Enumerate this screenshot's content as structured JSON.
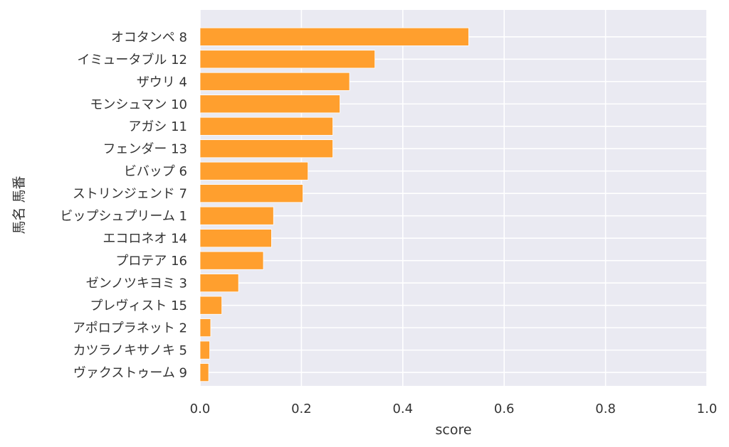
{
  "chart_data": {
    "type": "bar",
    "orientation": "horizontal",
    "title": "",
    "xlabel": "score",
    "ylabel": "馬名 馬番",
    "xlim": [
      0,
      1.0
    ],
    "xticks": [
      "0.0",
      "0.2",
      "0.4",
      "0.6",
      "0.8",
      "1.0"
    ],
    "grid": true,
    "legend": "none",
    "categories": [
      "オコタンペ 8",
      "イミュータブル 12",
      "ザウリ 4",
      "モンシュマン 10",
      "アガシ 11",
      "フェンダー 13",
      "ビバップ 6",
      "ストリンジェンド 7",
      "ビップシュプリーム 1",
      "エコロネオ 14",
      "プロテア 16",
      "ゼンノツキヨミ 3",
      "プレヴィスト 15",
      "アポロプラネット 2",
      "カツラノキサノキ 5",
      "ヴァクストゥーム 9"
    ],
    "values": [
      0.53,
      0.345,
      0.295,
      0.276,
      0.262,
      0.262,
      0.213,
      0.203,
      0.145,
      0.141,
      0.125,
      0.076,
      0.043,
      0.021,
      0.019,
      0.017
    ],
    "colors": {
      "bar": "#ff9f2e",
      "background": "#eaeaf2",
      "grid": "#ffffff",
      "text": "#333333"
    }
  }
}
